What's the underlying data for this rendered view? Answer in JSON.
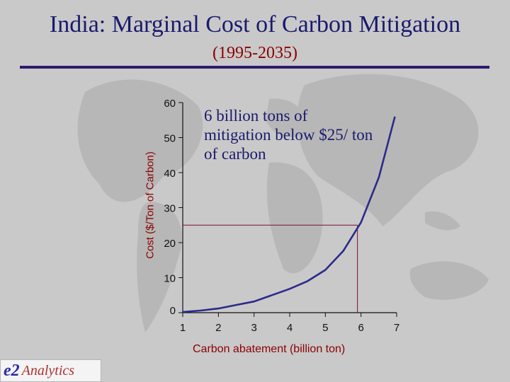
{
  "title": "India: Marginal Cost of Carbon Mitigation",
  "subtitle": "(1995-2035)",
  "annotation": "6 billion tons of mitigation below $25/ ton of carbon",
  "logo": {
    "mark": "e2",
    "text": "Analytics"
  },
  "colors": {
    "title": "#1a1a6e",
    "labels": "#8b0000",
    "curve": "#2a2a8c",
    "guide": "#7a1030"
  },
  "chart_data": {
    "type": "line",
    "title": "India: Marginal Cost of Carbon Mitigation",
    "xlabel": "Carbon abatement (billion ton)",
    "ylabel": "Cost ($/Ton of Carbon)",
    "xlim": [
      1,
      7
    ],
    "ylim": [
      0,
      60
    ],
    "xticks": [
      1,
      2,
      3,
      4,
      5,
      6,
      7
    ],
    "yticks": [
      0,
      10,
      20,
      30,
      40,
      50,
      60
    ],
    "grid": false,
    "series": [
      {
        "x": [
          1,
          1.5,
          2,
          2.5,
          3,
          3.5,
          4,
          4.5,
          5,
          5.5,
          6,
          6.5,
          6.95
        ],
        "y": [
          0.2,
          0.6,
          1.2,
          2.2,
          3.2,
          5.0,
          6.8,
          9.0,
          12.2,
          17.6,
          25.8,
          38.6,
          56
        ]
      }
    ],
    "reference_point": {
      "x": 5.9,
      "y": 25
    }
  }
}
